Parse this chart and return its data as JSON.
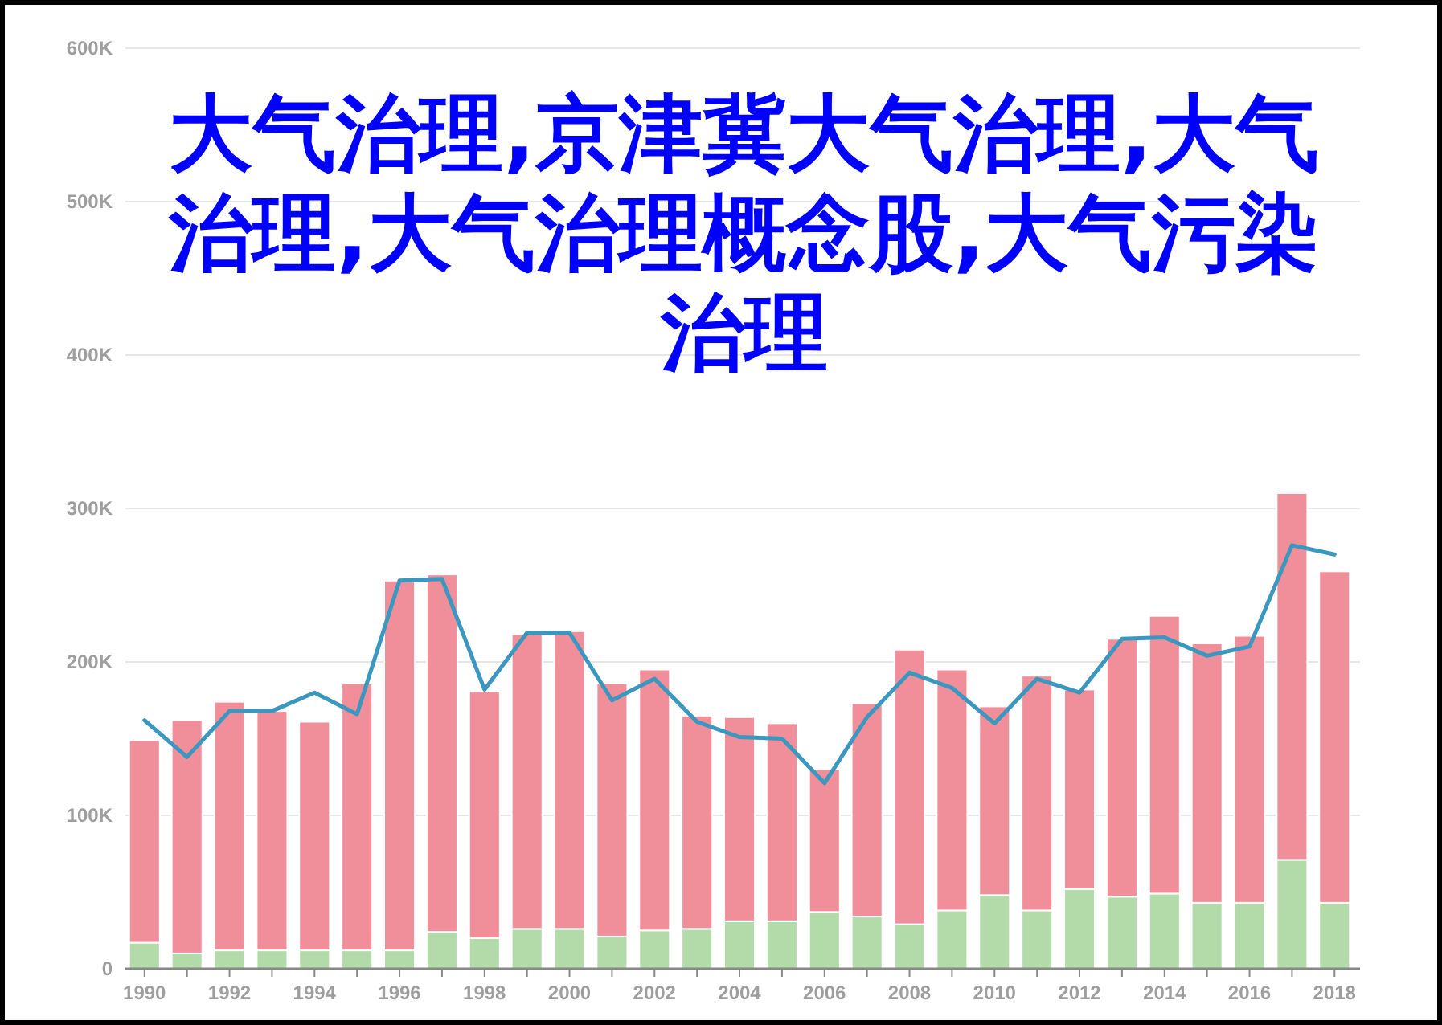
{
  "chart_data": {
    "type": "bar",
    "title": "大气治理,京津冀大气治理,大气治理,大气治理概念股,大气污染治理",
    "stacked": true,
    "x": [
      1990,
      1991,
      1992,
      1993,
      1994,
      1995,
      1996,
      1997,
      1998,
      1999,
      2000,
      2001,
      2002,
      2003,
      2004,
      2005,
      2006,
      2007,
      2008,
      2009,
      2010,
      2011,
      2012,
      2013,
      2014,
      2015,
      2016,
      2017,
      2018
    ],
    "series": [
      {
        "color": "#b3dba9",
        "values": [
          17,
          10,
          12,
          12,
          12,
          12,
          12,
          24,
          20,
          26,
          26,
          21,
          25,
          26,
          31,
          31,
          37,
          34,
          29,
          38,
          48,
          38,
          52,
          47,
          49,
          43,
          43,
          71,
          43
        ]
      },
      {
        "color": "#f08e99",
        "values": [
          132,
          152,
          162,
          156,
          149,
          174,
          241,
          233,
          161,
          192,
          194,
          165,
          170,
          139,
          133,
          129,
          93,
          139,
          179,
          157,
          123,
          153,
          130,
          168,
          181,
          169,
          174,
          239,
          216
        ]
      },
      {
        "type": "line",
        "color": "#3a97c0",
        "values": [
          162,
          138,
          168,
          168,
          180,
          166,
          253,
          254,
          182,
          219,
          219,
          175,
          189,
          161,
          151,
          150,
          121,
          164,
          193,
          183,
          160,
          189,
          180,
          215,
          216,
          204,
          210,
          276,
          270
        ]
      }
    ],
    "xlim": [
      1989.55,
      2018.6
    ],
    "xticks": [
      {
        "value": 1990,
        "label": "1990"
      },
      {
        "value": 1991,
        "label": null
      },
      {
        "value": 1992,
        "label": "1992"
      },
      {
        "value": 1993,
        "label": null
      },
      {
        "value": 1994,
        "label": "1994"
      },
      {
        "value": 1995,
        "label": null
      },
      {
        "value": 1996,
        "label": "1996"
      },
      {
        "value": 1997,
        "label": null
      },
      {
        "value": 1998,
        "label": "1998"
      },
      {
        "value": 1999,
        "label": null
      },
      {
        "value": 2000,
        "label": "2000"
      },
      {
        "value": 2001,
        "label": null
      },
      {
        "value": 2002,
        "label": "2002"
      },
      {
        "value": 2003,
        "label": null
      },
      {
        "value": 2004,
        "label": "2004"
      },
      {
        "value": 2005,
        "label": null
      },
      {
        "value": 2006,
        "label": "2006"
      },
      {
        "value": 2007,
        "label": null
      },
      {
        "value": 2008,
        "label": "2008"
      },
      {
        "value": 2009,
        "label": null
      },
      {
        "value": 2010,
        "label": "2010"
      },
      {
        "value": 2011,
        "label": null
      },
      {
        "value": 2012,
        "label": "2012"
      },
      {
        "value": 2013,
        "label": null
      },
      {
        "value": 2014,
        "label": "2014"
      },
      {
        "value": 2015,
        "label": null
      },
      {
        "value": 2016,
        "label": "2016"
      },
      {
        "value": 2017,
        "label": null
      },
      {
        "value": 2018,
        "label": "2018"
      }
    ],
    "ylim": [
      0,
      600
    ],
    "yticks": [
      {
        "value": 0,
        "label": "0"
      },
      {
        "value": 100,
        "label": "100K"
      },
      {
        "value": 200,
        "label": "200K"
      },
      {
        "value": 300,
        "label": "300K"
      },
      {
        "value": 400,
        "label": "400K"
      },
      {
        "value": 500,
        "label": "500K"
      },
      {
        "value": 600,
        "label": "600K"
      }
    ],
    "grid": "y",
    "marker": "none",
    "line_style": "solid"
  }
}
